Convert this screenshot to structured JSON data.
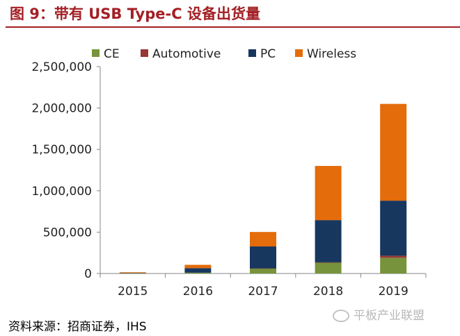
{
  "title": "图 9：带有 USB Type-C 设备出货量",
  "source": "资料来源：招商证券，IHS",
  "watermark": "平板产业联盟",
  "colors": {
    "title": "#a31f24",
    "CE": "#77933c",
    "Automotive": "#953735",
    "PC": "#17375e",
    "Wireless": "#e46c0a"
  },
  "chart_data": {
    "type": "bar",
    "stacked": true,
    "categories": [
      "2015",
      "2016",
      "2017",
      "2018",
      "2019"
    ],
    "series": [
      {
        "name": "CE",
        "values": [
          2000,
          10000,
          60000,
          130000,
          190000
        ]
      },
      {
        "name": "Automotive",
        "values": [
          0,
          0,
          2000,
          5000,
          25000
        ]
      },
      {
        "name": "PC",
        "values": [
          5000,
          55000,
          265000,
          510000,
          665000
        ]
      },
      {
        "name": "Wireless",
        "values": [
          8000,
          40000,
          175000,
          655000,
          1170000
        ]
      }
    ],
    "ylim": [
      0,
      2500000
    ],
    "yticks": [
      0,
      500000,
      1000000,
      1500000,
      2000000,
      2500000
    ],
    "ytick_labels": [
      "0",
      "500,000",
      "1,000,000",
      "1,500,000",
      "2,000,000",
      "2,500,000"
    ],
    "legend_position": "top",
    "grid": false,
    "title": "",
    "xlabel": "",
    "ylabel": ""
  }
}
